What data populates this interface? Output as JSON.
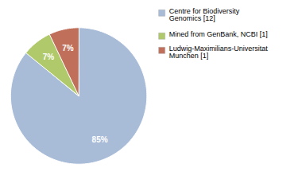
{
  "chart_data": {
    "type": "pie",
    "categories": [
      "Centre for Biodiversity\nGenomics [12]",
      "Mined from GenBank, NCBI [1]",
      "Ludwig-Maximilians-Universitat\nMunchen [1]"
    ],
    "values": [
      85,
      7,
      7
    ],
    "value_labels": [
      "85%",
      "7%",
      "7%"
    ],
    "colors": [
      "#a8bcd8",
      "#b0c96a",
      "#c0705a"
    ],
    "data_labels": true,
    "legend": "right"
  }
}
